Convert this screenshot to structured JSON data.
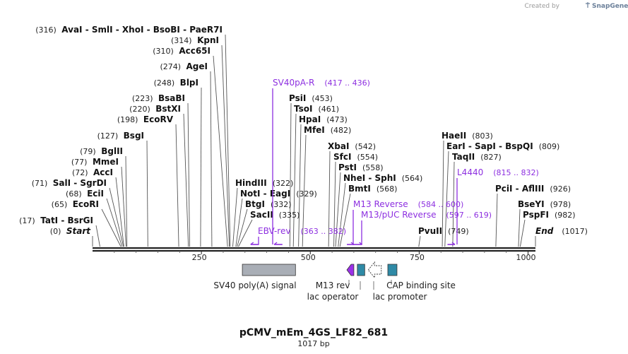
{
  "header": {
    "created_by": "Created by",
    "brand": "SnapGene"
  },
  "map": {
    "title": "pCMV_mEm_4GS_LF82_681",
    "subtitle": "1017 bp",
    "length": 1017,
    "backbone_color": "#222222",
    "primer_color": "#8d2fe0"
  },
  "ticks": [
    {
      "label": "250",
      "value": 250
    },
    {
      "label": "500",
      "value": 500
    },
    {
      "label": "750",
      "value": 750
    },
    {
      "label": "1000",
      "value": 1000
    }
  ],
  "enzyme_groups": [
    {
      "id": "g316",
      "pos": "(316)",
      "names": "AvaI  - SmlI  - XhoI  - BsoBI  - PaeR7I",
      "anchors": [
        316
      ]
    },
    {
      "id": "g314",
      "pos": "(314)",
      "names": "KpnI",
      "anchors": [
        314
      ]
    },
    {
      "id": "g310",
      "pos": "(310)",
      "names": "Acc65I",
      "anchors": [
        310
      ]
    },
    {
      "id": "g274",
      "pos": "(274)",
      "names": "AgeI",
      "anchors": [
        274
      ]
    },
    {
      "id": "g248",
      "pos": "(248)",
      "names": "BlpI",
      "anchors": [
        248
      ]
    },
    {
      "id": "g223",
      "pos": "(223)",
      "names": "BsaBI",
      "anchors": [
        223
      ]
    },
    {
      "id": "g220",
      "pos": "(220)",
      "names": "BstXI",
      "anchors": [
        220
      ]
    },
    {
      "id": "g198",
      "pos": "(198)",
      "names": "EcoRV",
      "anchors": [
        198
      ]
    },
    {
      "id": "g127",
      "pos": "(127)",
      "names": "BsgI",
      "anchors": [
        127
      ]
    },
    {
      "id": "g79",
      "pos": "(79)",
      "names": "BglII",
      "anchors": [
        79
      ]
    },
    {
      "id": "g77",
      "pos": "(77)",
      "names": "MmeI",
      "anchors": [
        77
      ]
    },
    {
      "id": "g72",
      "pos": "(72)",
      "names": "AccI",
      "anchors": [
        72
      ]
    },
    {
      "id": "g71",
      "pos": "(71)",
      "names": "SalI  - SgrDI",
      "anchors": [
        71
      ]
    },
    {
      "id": "g68",
      "pos": "(68)",
      "names": "EciI",
      "anchors": [
        68
      ]
    },
    {
      "id": "g65",
      "pos": "(65)",
      "names": "EcoRI",
      "anchors": [
        65
      ]
    },
    {
      "id": "g17",
      "pos": "(17)",
      "names": "TatI  - BsrGI",
      "anchors": [
        17
      ]
    },
    {
      "id": "g453",
      "pos": "(453)",
      "names": "PsiI",
      "anchors": [
        453
      ]
    },
    {
      "id": "g461",
      "pos": "(461)",
      "names": "TsoI",
      "anchors": [
        461
      ]
    },
    {
      "id": "g473",
      "pos": "(473)",
      "names": "HpaI",
      "anchors": [
        473
      ]
    },
    {
      "id": "g482",
      "pos": "(482)",
      "names": "MfeI",
      "anchors": [
        482
      ]
    },
    {
      "id": "g542",
      "pos": "(542)",
      "names": "XbaI",
      "anchors": [
        542
      ]
    },
    {
      "id": "g554",
      "pos": "(554)",
      "names": "SfcI",
      "anchors": [
        554
      ]
    },
    {
      "id": "g558",
      "pos": "(558)",
      "names": "PstI",
      "anchors": [
        558
      ]
    },
    {
      "id": "g564",
      "pos": "(564)",
      "names": "NheI  - SphI",
      "anchors": [
        564
      ]
    },
    {
      "id": "g568",
      "pos": "(568)",
      "names": "BmtI",
      "anchors": [
        568
      ]
    },
    {
      "id": "g322",
      "pos": "(322)",
      "names": "HindIII",
      "anchors": [
        322
      ]
    },
    {
      "id": "g329",
      "pos": "(329)",
      "names": "NotI  - EagI",
      "anchors": [
        329
      ]
    },
    {
      "id": "g332",
      "pos": "(332)",
      "names": "BtgI",
      "anchors": [
        332
      ]
    },
    {
      "id": "g335",
      "pos": "(335)",
      "names": "SacII",
      "anchors": [
        335
      ]
    },
    {
      "id": "g803",
      "pos": "(803)",
      "names": "HaeII",
      "anchors": [
        803
      ]
    },
    {
      "id": "g809",
      "pos": "(809)",
      "names": "EarI  - SapI  - BspQI",
      "anchors": [
        809
      ]
    },
    {
      "id": "g827",
      "pos": "(827)",
      "names": "TaqII",
      "anchors": [
        827
      ]
    },
    {
      "id": "g749",
      "pos": "(749)",
      "names": "PvuII",
      "anchors": [
        749
      ]
    },
    {
      "id": "g926",
      "pos": "(926)",
      "names": "PciI  - AflIII",
      "anchors": [
        926
      ]
    },
    {
      "id": "g978",
      "pos": "(978)",
      "names": "BseYI",
      "anchors": [
        978
      ]
    },
    {
      "id": "g982",
      "pos": "(982)",
      "names": "PspFI",
      "anchors": [
        982
      ]
    }
  ],
  "start_marker": {
    "pos": "(0)",
    "label": "Start"
  },
  "end_marker": {
    "label": "End",
    "pos": "(1017)"
  },
  "primers": [
    {
      "id": "sv40pa",
      "name": "SV40pA-R",
      "range": "(417 .. 436)",
      "start": 417,
      "end": 436,
      "direction": "reverse"
    },
    {
      "id": "ebvrev",
      "name": "EBV-rev",
      "range": "(363 .. 382)",
      "start": 363,
      "end": 382,
      "direction": "reverse"
    },
    {
      "id": "m13rev",
      "name": "M13 Reverse",
      "range": "(584 .. 600)",
      "start": 584,
      "end": 600,
      "direction": "forward"
    },
    {
      "id": "m13puc",
      "name": "M13/pUC Reverse",
      "range": "(597 .. 619)",
      "start": 597,
      "end": 619,
      "direction": "forward"
    },
    {
      "id": "l4440",
      "name": "L4440",
      "range": "(815 .. 832)",
      "start": 815,
      "end": 832,
      "direction": "forward"
    }
  ],
  "features": [
    {
      "id": "sv40polya",
      "name": "SV40 poly(A) signal",
      "start": 344,
      "end": 466,
      "color": "#a9aeb6",
      "shape": "box"
    },
    {
      "id": "m13revfeat",
      "name": "M13 rev",
      "start": 584,
      "end": 600,
      "color": "#9b30e8",
      "shape": "arrow-left"
    },
    {
      "id": "lacop",
      "name": "lac operator",
      "start": 608,
      "end": 625,
      "color": "#2f8aa6",
      "shape": "box"
    },
    {
      "id": "lacprom",
      "name": "lac promoter",
      "start": 633,
      "end": 663,
      "color": "#ffffff",
      "shape": "arrow-left-outline"
    },
    {
      "id": "cap",
      "name": "CAP binding site",
      "start": 678,
      "end": 699,
      "color": "#2f8aa6",
      "shape": "box"
    }
  ]
}
